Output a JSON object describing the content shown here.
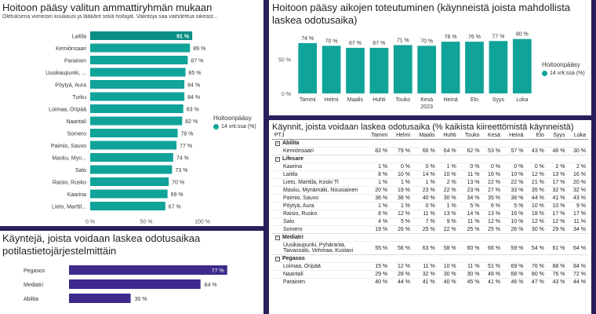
{
  "colors": {
    "teal": "#0fa39a",
    "purple": "#3d2a8c",
    "background": "#2a1f5c"
  },
  "panel1": {
    "title": "Hoitoon pääsy valitun ammattiryhmän mukaan",
    "subtitle": "Oletuksena viimeisin kuukausi ja lääkärit sekä hoitajat. Valintoja saa vaihdettua oikeast...",
    "legend_title": "Hoitoonpääsy",
    "legend_item": "14 vrk:ssa (%)",
    "chart_data": {
      "type": "bar",
      "orientation": "horizontal",
      "categories": [
        "Laitila",
        "Kemiönsaari",
        "Parainen",
        "Uusikaupunki, ...",
        "Pöytyä, Aura",
        "Turku",
        "Loimaa, Oripää",
        "Naantali",
        "Somero",
        "Paimio, Sauvo",
        "Masku, Myn...",
        "Salo",
        "Raisio, Rusko",
        "Kaarina",
        "Lieto, Marttil..."
      ],
      "values": [
        91,
        89,
        87,
        85,
        84,
        84,
        83,
        82,
        78,
        77,
        74,
        73,
        70,
        69,
        67
      ],
      "value_labels": [
        "91 %",
        "89 %",
        "87 %",
        "85 %",
        "84 %",
        "84 %",
        "83 %",
        "82 %",
        "78 %",
        "77 %",
        "74 %",
        "73 %",
        "70 %",
        "69 %",
        "67 %"
      ],
      "xlim": [
        0,
        100
      ],
      "xticks": [
        "0 %",
        "50 %",
        "100 %"
      ]
    }
  },
  "panel2": {
    "title": "Hoitoon pääsy aikojen toteutuminen (käynneistä joista mahdollista laskea odotusaika)",
    "legend_title": "Hoitoonpääsy",
    "legend_item": "14 vrk:ssa (%)",
    "chart_data": {
      "type": "bar",
      "categories": [
        "Tammi",
        "Helmi",
        "Maalis",
        "Huhti",
        "Touko",
        "Kesä",
        "Heinä",
        "Elo",
        "Syys",
        "Loka"
      ],
      "values": [
        74,
        70,
        67,
        67,
        71,
        70,
        76,
        76,
        77,
        80
      ],
      "value_labels": [
        "74 %",
        "70 %",
        "67 %",
        "67 %",
        "71 %",
        "70 %",
        "76 %",
        "76 %",
        "77 %",
        "80 %"
      ],
      "year_label": "2023",
      "ylim": [
        0,
        90
      ],
      "yticks": [
        "0 %",
        "50 %"
      ]
    }
  },
  "panel3": {
    "title": "Käyntejä, joista voidaan laskea odotusaikaa potilastietojärjestelmittäin",
    "chart_data": {
      "type": "bar",
      "orientation": "horizontal",
      "categories": [
        "Pegasos",
        "Mediatri",
        "Abilita"
      ],
      "values": [
        77,
        64,
        30
      ],
      "value_labels": [
        "77 %",
        "64 %",
        "30 %"
      ],
      "xlim": [
        0,
        100
      ]
    }
  },
  "panel4": {
    "title": "Käynnit, joista voidaan laskea odotusaika (% kaikista kiireettömistä käynneistä)",
    "columns": [
      "PTJ",
      "Tammi",
      "Helmi",
      "Maalis",
      "Huhti",
      "Touko",
      "Kesä",
      "Heinä",
      "Elo",
      "Syys",
      "Loka"
    ],
    "groups": [
      {
        "name": "Abilita",
        "rows": [
          {
            "name": "Kemiönsaari",
            "values": [
              "82 %",
              "79 %",
              "66 %",
              "64 %",
              "62 %",
              "53 %",
              "57 %",
              "43 %",
              "48 %",
              "30 %"
            ]
          }
        ]
      },
      {
        "name": "Lifecare",
        "rows": [
          {
            "name": "Kaarina",
            "values": [
              "1 %",
              "0 %",
              "0 %",
              "1 %",
              "0 %",
              "0 %",
              "0 %",
              "0 %",
              "2 %",
              "2 %"
            ]
          },
          {
            "name": "Laitila",
            "values": [
              "8 %",
              "10 %",
              "14 %",
              "10 %",
              "11 %",
              "16 %",
              "10 %",
              "12 %",
              "13 %",
              "16 %"
            ]
          },
          {
            "name": "Lieto, Marttila, Koski Tl",
            "values": [
              "1 %",
              "1 %",
              "1 %",
              "2 %",
              "13 %",
              "22 %",
              "22 %",
              "21 %",
              "17 %",
              "20 %"
            ]
          },
          {
            "name": "Masku, Mynämäki, Nousiainen",
            "values": [
              "20 %",
              "19 %",
              "23 %",
              "22 %",
              "23 %",
              "27 %",
              "33 %",
              "35 %",
              "32 %",
              "32 %"
            ]
          },
          {
            "name": "Paimio, Sauvo",
            "values": [
              "36 %",
              "38 %",
              "40 %",
              "30 %",
              "34 %",
              "35 %",
              "38 %",
              "44 %",
              "41 %",
              "43 %"
            ]
          },
          {
            "name": "Pöytyä, Aura",
            "values": [
              "1 %",
              "1 %",
              "0 %",
              "1 %",
              "5 %",
              "6 %",
              "5 %",
              "10 %",
              "10 %",
              "9 %"
            ]
          },
          {
            "name": "Raisio, Rusko",
            "values": [
              "8 %",
              "12 %",
              "11 %",
              "13 %",
              "14 %",
              "13 %",
              "16 %",
              "18 %",
              "17 %",
              "17 %"
            ]
          },
          {
            "name": "Salo",
            "values": [
              "4 %",
              "5 %",
              "7 %",
              "9 %",
              "11 %",
              "12 %",
              "10 %",
              "12 %",
              "12 %",
              "11 %"
            ]
          },
          {
            "name": "Somero",
            "values": [
              "19 %",
              "26 %",
              "25 %",
              "22 %",
              "25 %",
              "25 %",
              "26 %",
              "30 %",
              "29 %",
              "34 %"
            ]
          }
        ]
      },
      {
        "name": "Mediatri",
        "rows": [
          {
            "name": "Uusikaupunki, Pyhäranta, Taivassalo, Vehmaa, Kustavi",
            "values": [
              "55 %",
              "56 %",
              "63 %",
              "58 %",
              "60 %",
              "66 %",
              "59 %",
              "54 %",
              "61 %",
              "64 %"
            ]
          }
        ]
      },
      {
        "name": "Pegasos",
        "rows": [
          {
            "name": "Loimaa, Oripää",
            "values": [
              "15 %",
              "12 %",
              "11 %",
              "10 %",
              "11 %",
              "51 %",
              "69 %",
              "76 %",
              "88 %",
              "84 %"
            ]
          },
          {
            "name": "Naantali",
            "values": [
              "29 %",
              "28 %",
              "32 %",
              "30 %",
              "30 %",
              "46 %",
              "68 %",
              "80 %",
              "76 %",
              "72 %"
            ]
          },
          {
            "name": "Parainen",
            "values": [
              "40 %",
              "44 %",
              "41 %",
              "40 %",
              "45 %",
              "41 %",
              "46 %",
              "47 %",
              "43 %",
              "44 %"
            ]
          }
        ]
      }
    ]
  }
}
